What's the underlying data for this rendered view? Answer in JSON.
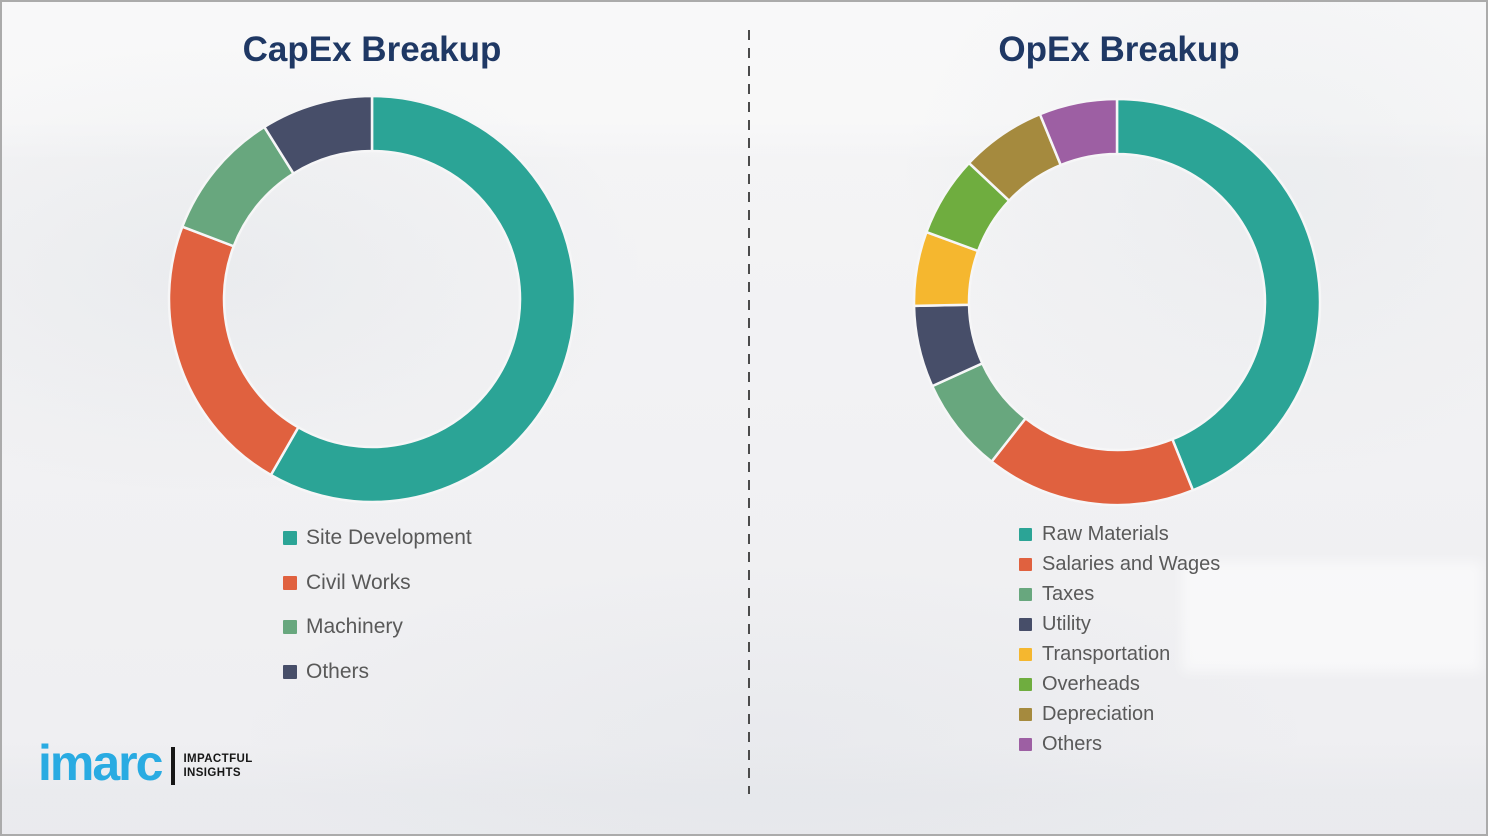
{
  "page": {
    "background_color": "#f1f1f3",
    "border_color": "#ababab",
    "divider_style": "vertical dashed line",
    "divider_color": "#4b4b4b",
    "title_color": "#1f3864",
    "legend_text_color": "#595959"
  },
  "logo": {
    "brand": "imarc",
    "brand_color": "#29abe2",
    "tagline_line1": "IMPACTFUL",
    "tagline_line2": "INSIGHTS",
    "tagline_color": "#161616"
  },
  "chart_data": [
    {
      "type": "pie",
      "subtype": "donut",
      "title": "CapEx Breakup",
      "value_units": "percent (estimated from arc angles; no data labels shown)",
      "direction": "clockwise",
      "start_angle_deg": 0,
      "inner_radius_ratio": 0.73,
      "legend_position": "below-left",
      "slices": [
        {
          "label": "Site Development",
          "value": 58.3,
          "color": "#2ba496"
        },
        {
          "label": "Civil Works",
          "value": 22.5,
          "color": "#e0613f"
        },
        {
          "label": "Machinery",
          "value": 10.3,
          "color": "#68a77e"
        },
        {
          "label": "Others",
          "value": 8.9,
          "color": "#474e69"
        }
      ]
    },
    {
      "type": "pie",
      "subtype": "donut",
      "title": "OpEx Breakup",
      "value_units": "percent (estimated from arc angles; no data labels shown)",
      "direction": "clockwise",
      "start_angle_deg": 0,
      "inner_radius_ratio": 0.73,
      "legend_position": "below-left",
      "slices": [
        {
          "label": "Raw Materials",
          "value": 43.9,
          "color": "#2ba496"
        },
        {
          "label": "Salaries and Wages",
          "value": 16.7,
          "color": "#e0613f"
        },
        {
          "label": "Taxes",
          "value": 7.6,
          "color": "#68a77e"
        },
        {
          "label": "Utility",
          "value": 6.5,
          "color": "#474e69"
        },
        {
          "label": "Transportation",
          "value": 5.9,
          "color": "#f5b72f"
        },
        {
          "label": "Overheads",
          "value": 6.4,
          "color": "#6fad3f"
        },
        {
          "label": "Depreciation",
          "value": 6.8,
          "color": "#a58a3e"
        },
        {
          "label": "Others",
          "value": 6.2,
          "color": "#9d5fa3"
        }
      ]
    }
  ]
}
